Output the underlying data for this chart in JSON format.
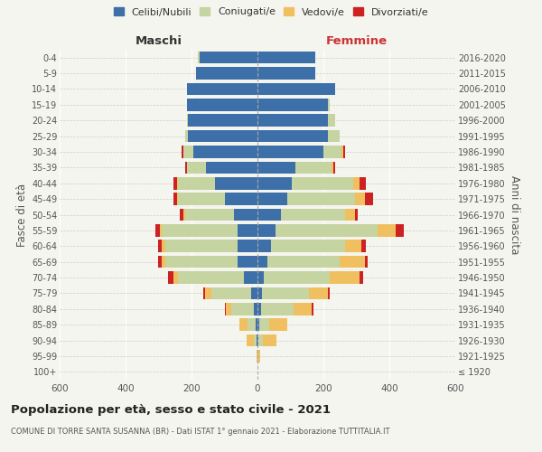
{
  "age_groups": [
    "100+",
    "95-99",
    "90-94",
    "85-89",
    "80-84",
    "75-79",
    "70-74",
    "65-69",
    "60-64",
    "55-59",
    "50-54",
    "45-49",
    "40-44",
    "35-39",
    "30-34",
    "25-29",
    "20-24",
    "15-19",
    "10-14",
    "5-9",
    "0-4"
  ],
  "birth_years": [
    "≤ 1920",
    "1921-1925",
    "1926-1930",
    "1931-1935",
    "1936-1940",
    "1941-1945",
    "1946-1950",
    "1951-1955",
    "1956-1960",
    "1961-1965",
    "1966-1970",
    "1971-1975",
    "1976-1980",
    "1981-1985",
    "1986-1990",
    "1991-1995",
    "1996-2000",
    "2001-2005",
    "2006-2010",
    "2011-2015",
    "2016-2020"
  ],
  "colors": {
    "celibe": "#3d6fa8",
    "coniugato": "#c5d4a0",
    "vedovo": "#f0c060",
    "divorziato": "#cc2222"
  },
  "maschi": {
    "celibe": [
      0,
      0,
      2,
      5,
      10,
      20,
      40,
      60,
      60,
      60,
      70,
      100,
      130,
      155,
      195,
      210,
      210,
      215,
      215,
      185,
      175
    ],
    "coniugato": [
      0,
      0,
      10,
      25,
      70,
      120,
      200,
      220,
      220,
      230,
      150,
      140,
      110,
      60,
      30,
      10,
      5,
      0,
      0,
      0,
      5
    ],
    "vedovo": [
      0,
      2,
      20,
      25,
      15,
      20,
      15,
      10,
      10,
      5,
      5,
      5,
      5,
      0,
      0,
      0,
      0,
      0,
      0,
      0,
      0
    ],
    "divorziato": [
      0,
      0,
      0,
      0,
      5,
      5,
      15,
      10,
      10,
      15,
      10,
      10,
      10,
      5,
      5,
      0,
      0,
      0,
      0,
      0,
      0
    ]
  },
  "femmine": {
    "nubile": [
      0,
      0,
      2,
      5,
      10,
      15,
      20,
      30,
      40,
      55,
      70,
      90,
      105,
      115,
      200,
      215,
      215,
      215,
      235,
      175,
      175
    ],
    "coniugata": [
      0,
      2,
      15,
      30,
      100,
      140,
      200,
      220,
      225,
      310,
      195,
      205,
      185,
      110,
      55,
      35,
      20,
      5,
      0,
      0,
      0
    ],
    "vedova": [
      0,
      5,
      40,
      55,
      55,
      60,
      90,
      75,
      50,
      55,
      30,
      30,
      20,
      5,
      5,
      0,
      0,
      0,
      0,
      0,
      0
    ],
    "divorziata": [
      0,
      0,
      0,
      0,
      5,
      5,
      10,
      10,
      15,
      25,
      10,
      25,
      20,
      5,
      5,
      0,
      0,
      0,
      0,
      0,
      0
    ]
  },
  "xlim": 600,
  "title": "Popolazione per età, sesso e stato civile - 2021",
  "subtitle": "COMUNE DI TORRE SANTA SUSANNA (BR) - Dati ISTAT 1° gennaio 2021 - Elaborazione TUTTITALIA.IT",
  "ylabel_left": "Fasce di età",
  "ylabel_right": "Anni di nascita",
  "xlabel_left": "Maschi",
  "xlabel_right": "Femmine",
  "legend_labels": [
    "Celibi/Nubili",
    "Coniugati/e",
    "Vedovi/e",
    "Divorziati/e"
  ],
  "background_color": "#f5f5f0"
}
